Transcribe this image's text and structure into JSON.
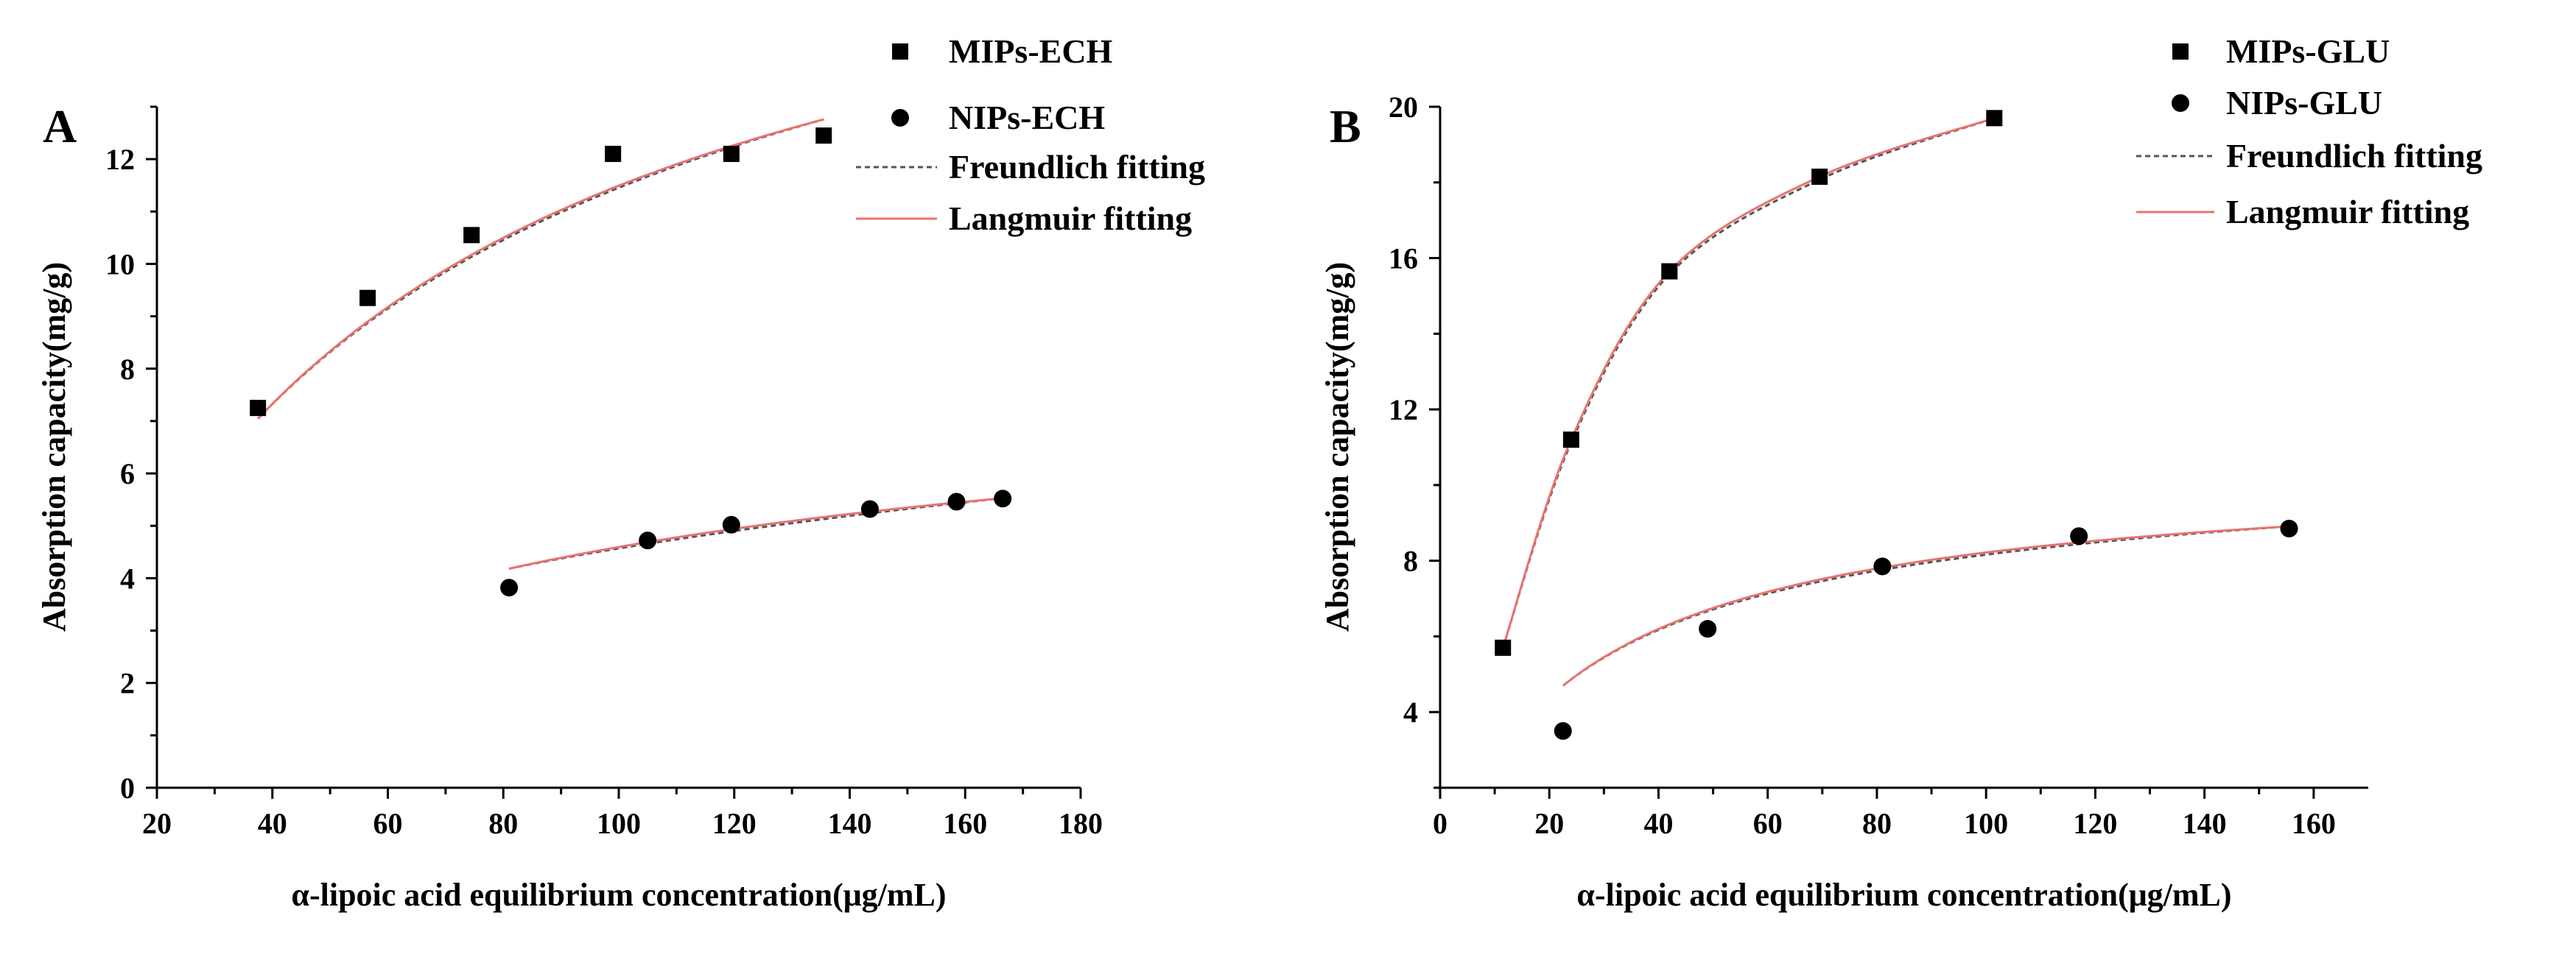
{
  "figure": {
    "panels": [
      "A",
      "B"
    ]
  },
  "colors": {
    "axis": "#000000",
    "marker": "#000000",
    "freundlich": "#555555",
    "langmuir": "#e8736f"
  },
  "chart_data": [
    {
      "type": "scatter",
      "panel_label": "A",
      "xlabel": "α-lipoic acid equilibrium concentration(μg/mL)",
      "ylabel": "Absorption capacity(mg/g)",
      "xlim": [
        20,
        180
      ],
      "ylim": [
        0,
        13
      ],
      "xticks": [
        20,
        40,
        60,
        80,
        100,
        120,
        140,
        160,
        180
      ],
      "yticks": [
        0,
        2,
        4,
        6,
        8,
        10,
        12
      ],
      "legend_position": "top-right",
      "legend": [
        "MIPs-ECH",
        "NIPs-ECH",
        "Freundlich fitting",
        "Langmuir fitting"
      ],
      "series": [
        {
          "name": "MIPs-ECH",
          "marker": "square",
          "x": [
            37.5,
            56.5,
            74.5,
            99,
            119.5,
            135.5
          ],
          "y": [
            7.25,
            9.35,
            10.55,
            12.1,
            12.1,
            12.45
          ],
          "fit": {
            "x0": 37.5,
            "x1": 135.5,
            "qmax": 18.5,
            "K": 0.0164
          }
        },
        {
          "name": "NIPs-ECH",
          "marker": "circle",
          "x": [
            81,
            105,
            119.5,
            143.5,
            158.5,
            166.5
          ],
          "y": [
            3.82,
            4.72,
            5.02,
            5.32,
            5.46,
            5.52
          ],
          "fit": {
            "x0": 81,
            "x1": 166.5,
            "qmax": 7.95,
            "K": 0.0137
          }
        }
      ]
    },
    {
      "type": "scatter",
      "panel_label": "B",
      "xlabel": "α-lipoic acid equilibrium concentration(μg/mL)",
      "ylabel": "Absorption capacity(mg/g)",
      "xlim": [
        0,
        170
      ],
      "ylim": [
        2,
        20
      ],
      "xticks": [
        0,
        20,
        40,
        60,
        80,
        100,
        120,
        140,
        160
      ],
      "yticks": [
        4,
        8,
        12,
        16,
        20
      ],
      "legend_position": "top-right",
      "legend": [
        "MIPs-GLU",
        "NIPs-GLU",
        "Freundlich fitting",
        "Langmuir fitting"
      ],
      "series": [
        {
          "name": "MIPs-GLU",
          "marker": "square",
          "x": [
            11.5,
            24,
            42,
            69.5,
            101.5
          ],
          "y": [
            5.7,
            11.2,
            15.65,
            18.15,
            19.7
          ],
          "fit": {
            "x0": 11.5,
            "x1": 101.5,
            "points": [
              [
                11.5,
                5.7
              ],
              [
                24,
                11.2
              ],
              [
                42,
                15.65
              ],
              [
                69.5,
                18.15
              ],
              [
                101.5,
                19.7
              ]
            ]
          }
        },
        {
          "name": "NIPs-GLU",
          "marker": "circle",
          "x": [
            22.5,
            49,
            81,
            117,
            155.5
          ],
          "y": [
            3.5,
            6.2,
            7.85,
            8.65,
            8.85
          ],
          "fit": {
            "x0": 22.5,
            "x1": 155.5,
            "qmax": 10.5,
            "K": 0.036
          }
        }
      ]
    }
  ]
}
